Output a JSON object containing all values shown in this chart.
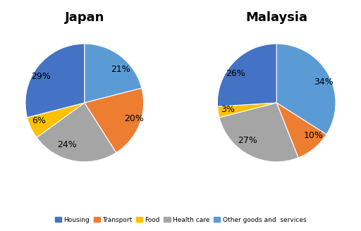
{
  "japan": {
    "title": "Japan",
    "values": [
      21,
      20,
      24,
      6,
      29
    ],
    "labels": [
      "21%",
      "20%",
      "24%",
      "6%",
      "29%"
    ],
    "colors": [
      "#5B9BD5",
      "#ED7D31",
      "#A5A5A5",
      "#FFC000",
      "#4472C4"
    ],
    "startangle": 90
  },
  "malaysia": {
    "title": "Malaysia",
    "values": [
      34,
      10,
      27,
      3,
      26
    ],
    "labels": [
      "34%",
      "10%",
      "27%",
      "3%",
      "26%"
    ],
    "colors": [
      "#5B9BD5",
      "#ED7D31",
      "#A5A5A5",
      "#FFC000",
      "#4472C4"
    ],
    "startangle": 90
  },
  "legend_labels": [
    "Housing",
    "Transport",
    "Food",
    "Health care",
    "Other goods and  services"
  ],
  "legend_colors": [
    "#4472C4",
    "#ED7D31",
    "#FFC000",
    "#A5A5A5",
    "#5B9BD5"
  ],
  "background_color": "#FFFFFF",
  "title_fontsize": 13,
  "pct_fontsize": 9
}
